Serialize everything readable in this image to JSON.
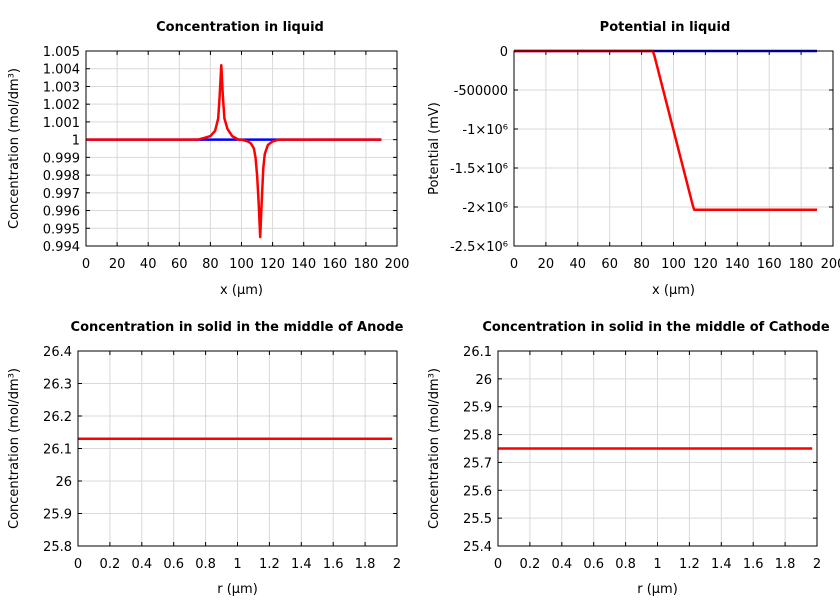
{
  "colors": {
    "red": "#ff0000",
    "blue": "#0000ff",
    "grid": "#d9d9d9"
  },
  "chart_data": [
    {
      "type": "line",
      "title": "Concentration in liquid",
      "xlabel": "x (μm)",
      "ylabel": "Concentration (mol/dm³)",
      "xlim": [
        0,
        200
      ],
      "ylim": [
        0.994,
        1.005
      ],
      "xticks": [
        "0",
        "20",
        "40",
        "60",
        "80",
        "100",
        "120",
        "140",
        "160",
        "180",
        "200"
      ],
      "yticks": [
        "1.005",
        "1.004",
        "1.003",
        "1.002",
        "1.001",
        "1",
        "0.999",
        "0.998",
        "0.997",
        "0.996",
        "0.995",
        "0.994"
      ],
      "grid": true,
      "series": [
        {
          "color": "#0000ff",
          "x": [
            0,
            190
          ],
          "y": [
            1.0,
            1.0
          ]
        },
        {
          "color": "#ff0000",
          "x": [
            0,
            72,
            76,
            80,
            83,
            85,
            86,
            87,
            88,
            89,
            91,
            94,
            98,
            100,
            104,
            106,
            108,
            109,
            110,
            111,
            112,
            113,
            114,
            115,
            117,
            120,
            124,
            190
          ],
          "y": [
            1.0,
            1.0,
            1.0001,
            1.0002,
            1.0005,
            1.0012,
            1.0025,
            1.0042,
            1.0025,
            1.0012,
            1.0006,
            1.0002,
            1.0,
            1.0,
            0.9999,
            0.9998,
            0.9995,
            0.999,
            0.998,
            0.9965,
            0.9945,
            0.9965,
            0.9984,
            0.9992,
            0.9997,
            0.9999,
            1.0,
            1.0
          ]
        }
      ]
    },
    {
      "type": "line",
      "title": "Potential in liquid",
      "xlabel": "x (μm)",
      "ylabel": "Potential (mV)",
      "xlim": [
        0,
        200
      ],
      "ylim": [
        -2500000,
        0
      ],
      "xticks": [
        "0",
        "20",
        "40",
        "60",
        "80",
        "100",
        "120",
        "140",
        "160",
        "180",
        "200"
      ],
      "yticks": [
        "0",
        "-500000",
        "-1×10⁶",
        "-1.5×10⁶",
        "-2×10⁶",
        "-2.5×10⁶"
      ],
      "grid": true,
      "series": [
        {
          "color": "#0000ff",
          "x": [
            0,
            190
          ],
          "y": [
            0,
            0
          ]
        },
        {
          "color": "#ff0000",
          "x": [
            0,
            87,
            88,
            112,
            113,
            190
          ],
          "y": [
            0,
            0,
            -60000,
            -1970000,
            -2035000,
            -2035000
          ]
        }
      ]
    },
    {
      "type": "line",
      "title": "Concentration in solid in the middle of Anode",
      "xlabel": "r (μm)",
      "ylabel": "Concentration (mol/dm³)",
      "xlim": [
        0,
        2
      ],
      "ylim": [
        25.8,
        26.4
      ],
      "xticks": [
        "0",
        "0.2",
        "0.4",
        "0.6",
        "0.8",
        "1",
        "1.2",
        "1.4",
        "1.6",
        "1.8",
        "2"
      ],
      "yticks": [
        "26.4",
        "26.3",
        "26.2",
        "26.1",
        "26",
        "25.9",
        "25.8"
      ],
      "grid": true,
      "series": [
        {
          "color": "#ff0000",
          "x": [
            0,
            1.97
          ],
          "y": [
            26.13,
            26.13
          ]
        }
      ]
    },
    {
      "type": "line",
      "title": "Concentration in solid in the middle of Cathode",
      "xlabel": "r (μm)",
      "ylabel": "Concentration (mol/dm³)",
      "xlim": [
        0,
        2
      ],
      "ylim": [
        25.4,
        26.1
      ],
      "xticks": [
        "0",
        "0.2",
        "0.4",
        "0.6",
        "0.8",
        "1",
        "1.2",
        "1.4",
        "1.6",
        "1.8",
        "2"
      ],
      "yticks": [
        "26.1",
        "26",
        "25.9",
        "25.8",
        "25.7",
        "25.6",
        "25.5",
        "25.4"
      ],
      "grid": true,
      "series": [
        {
          "color": "#ff0000",
          "x": [
            0,
            1.97
          ],
          "y": [
            25.75,
            25.75
          ]
        }
      ]
    }
  ]
}
